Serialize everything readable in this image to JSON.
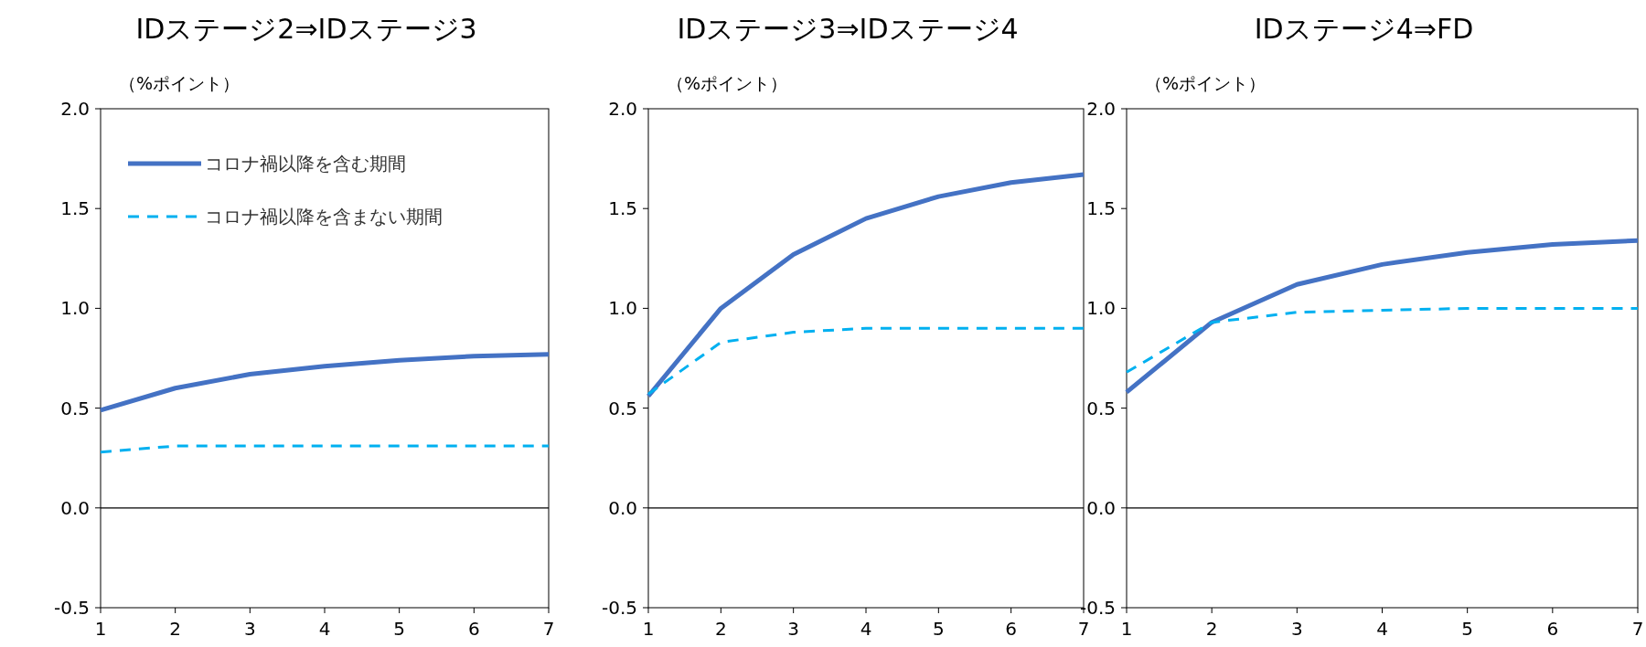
{
  "chart_data": [
    {
      "type": "line",
      "title": "IDステージ2⇒IDステージ3",
      "ylabel": "（%ポイント）",
      "x": [
        1,
        2,
        3,
        4,
        5,
        6,
        7
      ],
      "xlim": [
        1,
        7
      ],
      "xticks": [
        1,
        2,
        3,
        4,
        5,
        6,
        7
      ],
      "ylim": [
        -0.5,
        2.0
      ],
      "yticks": [
        {
          "value": -0.5,
          "label": "-0.5"
        },
        {
          "value": 0,
          "label": "0.0"
        },
        {
          "value": 0.5,
          "label": "0.5"
        },
        {
          "value": 1,
          "label": "1.0"
        },
        {
          "value": 1.5,
          "label": "1.5"
        },
        {
          "value": 2,
          "label": "2.0"
        }
      ],
      "grid": false,
      "legend": "top left",
      "ref_lines": [
        {
          "axis": "y",
          "value": 0,
          "color": "#000000"
        }
      ],
      "series": [
        {
          "name": "コロナ禍以降を含む期間",
          "color": "#4472c4",
          "line_style": "solid",
          "values": [
            0.49,
            0.6,
            0.67,
            0.71,
            0.74,
            0.76,
            0.77
          ]
        },
        {
          "name": "コロナ禍以降を含まない期間",
          "color": "#00b0f0",
          "line_style": "dashed",
          "values": [
            0.28,
            0.31,
            0.31,
            0.31,
            0.31,
            0.31,
            0.31
          ]
        }
      ]
    },
    {
      "type": "line",
      "title": "IDステージ3⇒IDステージ4",
      "ylabel": "（%ポイント）",
      "x": [
        1,
        2,
        3,
        4,
        5,
        6,
        7
      ],
      "xlim": [
        1,
        7
      ],
      "xticks": [
        1,
        2,
        3,
        4,
        5,
        6,
        7
      ],
      "ylim": [
        -0.5,
        2.0
      ],
      "yticks": [
        {
          "value": -0.5,
          "label": "-0.5"
        },
        {
          "value": 0,
          "label": "0.0"
        },
        {
          "value": 0.5,
          "label": "0.5"
        },
        {
          "value": 1,
          "label": "1.0"
        },
        {
          "value": 1.5,
          "label": "1.5"
        },
        {
          "value": 2,
          "label": "2.0"
        }
      ],
      "grid": false,
      "ref_lines": [
        {
          "axis": "y",
          "value": 0,
          "color": "#000000"
        }
      ],
      "series": [
        {
          "color": "#4472c4",
          "line_style": "solid",
          "values": [
            0.56,
            1.0,
            1.27,
            1.45,
            1.56,
            1.63,
            1.67
          ]
        },
        {
          "color": "#00b0f0",
          "line_style": "dashed",
          "values": [
            0.57,
            0.83,
            0.88,
            0.9,
            0.9,
            0.9,
            0.9
          ]
        }
      ]
    },
    {
      "type": "line",
      "title": "IDステージ4⇒FD",
      "ylabel": "（%ポイント）",
      "x": [
        1,
        2,
        3,
        4,
        5,
        6,
        7
      ],
      "xlim": [
        1,
        7
      ],
      "xticks": [
        1,
        2,
        3,
        4,
        5,
        6,
        7
      ],
      "ylim": [
        -0.5,
        2.0
      ],
      "yticks": [
        {
          "value": -0.5,
          "label": "-0.5"
        },
        {
          "value": 0,
          "label": "0.0"
        },
        {
          "value": 0.5,
          "label": "0.5"
        },
        {
          "value": 1,
          "label": "1.0"
        },
        {
          "value": 1.5,
          "label": "1.5"
        },
        {
          "value": 2,
          "label": "2.0"
        }
      ],
      "grid": false,
      "ref_lines": [
        {
          "axis": "y",
          "value": 0,
          "color": "#000000"
        }
      ],
      "series": [
        {
          "color": "#4472c4",
          "line_style": "solid",
          "values": [
            0.58,
            0.93,
            1.12,
            1.22,
            1.28,
            1.32,
            1.34
          ]
        },
        {
          "color": "#00b0f0",
          "line_style": "dashed",
          "values": [
            0.68,
            0.93,
            0.98,
            0.99,
            1.0,
            1.0,
            1.0
          ]
        }
      ]
    }
  ]
}
